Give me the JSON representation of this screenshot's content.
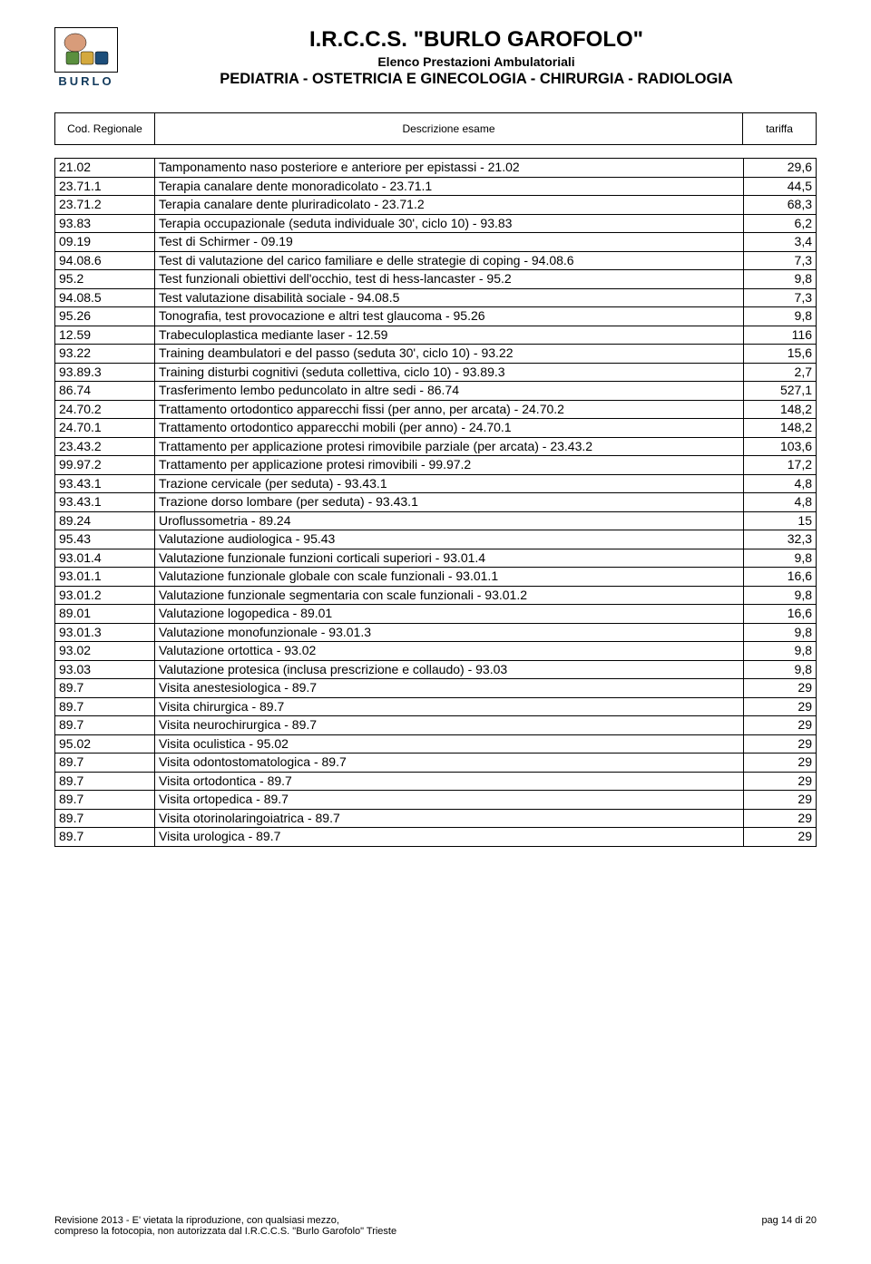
{
  "header": {
    "logo_label": "BURLO",
    "logo_colors": [
      "#5a8f3e",
      "#d4a93e",
      "#1d4e7a"
    ],
    "title": "I.R.C.C.S. \"BURLO GAROFOLO\"",
    "subtitle1": "Elenco Prestazioni Ambulatoriali",
    "subtitle2": "PEDIATRIA - OSTETRICIA E GINECOLOGIA - CHIRURGIA - RADIOLOGIA"
  },
  "columns": {
    "code": "Cod. Regionale",
    "desc": "Descrizione esame",
    "tariff": "tariffa"
  },
  "rows": [
    {
      "code": "21.02",
      "desc": "Tamponamento naso posteriore e anteriore per epistassi - 21.02",
      "tariff": "29,6"
    },
    {
      "code": "23.71.1",
      "desc": "Terapia canalare dente monoradicolato - 23.71.1",
      "tariff": "44,5"
    },
    {
      "code": "23.71.2",
      "desc": "Terapia canalare dente pluriradicolato - 23.71.2",
      "tariff": "68,3"
    },
    {
      "code": "93.83",
      "desc": "Terapia occupazionale (seduta individuale 30', ciclo 10) - 93.83",
      "tariff": "6,2"
    },
    {
      "code": "09.19",
      "desc": "Test di Schirmer - 09.19",
      "tariff": "3,4"
    },
    {
      "code": "94.08.6",
      "desc": "Test di valutazione del carico familiare e delle strategie di coping - 94.08.6",
      "tariff": "7,3"
    },
    {
      "code": "95.2",
      "desc": "Test funzionali obiettivi dell'occhio, test di hess-lancaster - 95.2",
      "tariff": "9,8"
    },
    {
      "code": "94.08.5",
      "desc": "Test valutazione disabilità sociale - 94.08.5",
      "tariff": "7,3"
    },
    {
      "code": "95.26",
      "desc": "Tonografia, test provocazione e altri test glaucoma - 95.26",
      "tariff": "9,8"
    },
    {
      "code": "12.59",
      "desc": "Trabeculoplastica mediante laser - 12.59",
      "tariff": "116"
    },
    {
      "code": "93.22",
      "desc": "Training deambulatori e del passo (seduta 30', ciclo 10) - 93.22",
      "tariff": "15,6"
    },
    {
      "code": "93.89.3",
      "desc": "Training disturbi cognitivi (seduta collettiva, ciclo 10) - 93.89.3",
      "tariff": "2,7"
    },
    {
      "code": "86.74",
      "desc": "Trasferimento lembo peduncolato in altre sedi - 86.74",
      "tariff": "527,1"
    },
    {
      "code": "24.70.2",
      "desc": "Trattamento ortodontico apparecchi fissi (per anno, per arcata) - 24.70.2",
      "tariff": "148,2"
    },
    {
      "code": "24.70.1",
      "desc": "Trattamento ortodontico apparecchi mobili (per anno) - 24.70.1",
      "tariff": "148,2"
    },
    {
      "code": "23.43.2",
      "desc": "Trattamento per applicazione protesi rimovibile parziale (per arcata) - 23.43.2",
      "tariff": "103,6"
    },
    {
      "code": "99.97.2",
      "desc": "Trattamento per applicazione protesi rimovibili - 99.97.2",
      "tariff": "17,2"
    },
    {
      "code": "93.43.1",
      "desc": "Trazione cervicale (per seduta) - 93.43.1",
      "tariff": "4,8"
    },
    {
      "code": "93.43.1",
      "desc": "Trazione dorso lombare (per seduta) - 93.43.1",
      "tariff": "4,8"
    },
    {
      "code": "89.24",
      "desc": "Uroflussometria - 89.24",
      "tariff": "15"
    },
    {
      "code": "95.43",
      "desc": "Valutazione audiologica - 95.43",
      "tariff": "32,3"
    },
    {
      "code": "93.01.4",
      "desc": "Valutazione funzionale funzioni corticali superiori - 93.01.4",
      "tariff": "9,8"
    },
    {
      "code": "93.01.1",
      "desc": "Valutazione funzionale globale con scale funzionali - 93.01.1",
      "tariff": "16,6"
    },
    {
      "code": "93.01.2",
      "desc": "Valutazione funzionale segmentaria con scale funzionali - 93.01.2",
      "tariff": "9,8"
    },
    {
      "code": "89.01",
      "desc": "Valutazione logopedica - 89.01",
      "tariff": "16,6"
    },
    {
      "code": "93.01.3",
      "desc": "Valutazione monofunzionale - 93.01.3",
      "tariff": "9,8"
    },
    {
      "code": "93.02",
      "desc": "Valutazione ortottica - 93.02",
      "tariff": "9,8"
    },
    {
      "code": "93.03",
      "desc": "Valutazione protesica (inclusa prescrizione e collaudo) - 93.03",
      "tariff": "9,8"
    },
    {
      "code": "89.7",
      "desc": "Visita anestesiologica - 89.7",
      "tariff": "29"
    },
    {
      "code": "89.7",
      "desc": "Visita chirurgica - 89.7",
      "tariff": "29"
    },
    {
      "code": "89.7",
      "desc": "Visita neurochirurgica - 89.7",
      "tariff": "29"
    },
    {
      "code": "95.02",
      "desc": "Visita oculistica - 95.02",
      "tariff": "29"
    },
    {
      "code": "89.7",
      "desc": "Visita odontostomatologica - 89.7",
      "tariff": "29"
    },
    {
      "code": "89.7",
      "desc": "Visita ortodontica - 89.7",
      "tariff": "29"
    },
    {
      "code": "89.7",
      "desc": "Visita ortopedica - 89.7",
      "tariff": "29"
    },
    {
      "code": "89.7",
      "desc": "Visita otorinolaringoiatrica - 89.7",
      "tariff": "29"
    },
    {
      "code": "89.7",
      "desc": "Visita urologica - 89.7",
      "tariff": "29"
    }
  ],
  "footer": {
    "line1": "Revisione 2013 - E' vietata la riproduzione, con qualsiasi mezzo,",
    "line2": "compreso la fotocopia, non autorizzata dal I.R.C.C.S. \"Burlo Garofolo\" Trieste",
    "page": "pag 14 di 20"
  }
}
